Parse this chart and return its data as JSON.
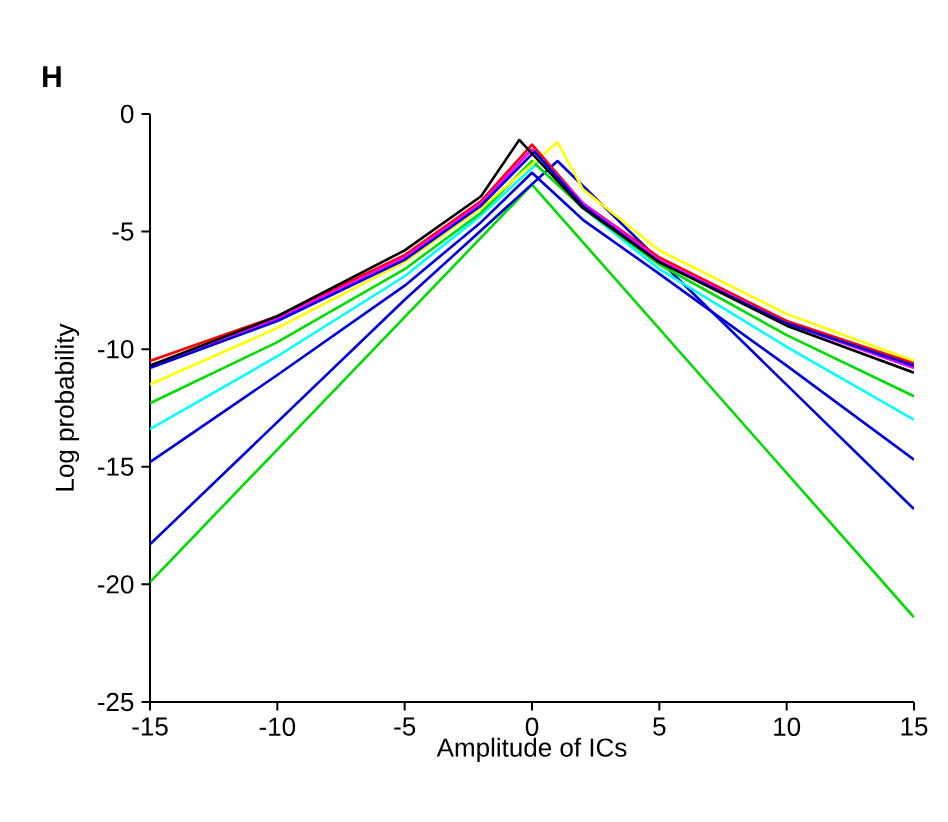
{
  "chart_data": {
    "type": "line",
    "xlabel": "Amplitude of ICs",
    "ylabel": "Log probability",
    "annotations": [
      "H"
    ],
    "xlim": [
      -15,
      15
    ],
    "ylim": [
      -25,
      0
    ],
    "xticks": [
      -15,
      -10,
      -5,
      0,
      5,
      10,
      15
    ],
    "yticks": [
      -25,
      -20,
      -15,
      -10,
      -5,
      0
    ],
    "grid": false,
    "marker": "none",
    "line_style": "solid",
    "series": [
      {
        "color": "#00dd00",
        "x": [
          -15,
          0,
          15
        ],
        "values": [
          -19.9,
          -3,
          -21.4
        ]
      },
      {
        "color": "#0000dd",
        "x": [
          -15,
          -5,
          1,
          15
        ],
        "values": [
          -18.3,
          -7.9,
          -2,
          -16.8
        ]
      },
      {
        "color": "#0000dd",
        "x": [
          -15,
          -10,
          -5,
          -2,
          0,
          2,
          5,
          10,
          15
        ],
        "values": [
          -14.8,
          -11.1,
          -7.3,
          -4.6,
          -2.5,
          -4.5,
          -6.8,
          -10.7,
          -14.7
        ]
      },
      {
        "color": "#00ffff",
        "x": [
          -15,
          -10,
          -5,
          -2,
          0.3,
          2,
          5,
          10,
          15
        ],
        "values": [
          -13.4,
          -10.3,
          -6.9,
          -4.3,
          -2,
          -4,
          -6.6,
          -9.9,
          -13
        ]
      },
      {
        "color": "#00dd00",
        "x": [
          -15,
          -10,
          -5,
          -2,
          0,
          2,
          5,
          10,
          15
        ],
        "values": [
          -12.3,
          -9.7,
          -6.6,
          -4.2,
          -2,
          -4,
          -6.4,
          -9.4,
          -12
        ]
      },
      {
        "color": "#ffff00",
        "x": [
          -15,
          -10,
          -5,
          -2,
          1,
          2,
          5,
          10,
          15
        ],
        "values": [
          -11.5,
          -9.1,
          -6.3,
          -4,
          -1.2,
          -3.2,
          -5.8,
          -8.5,
          -10.5
        ]
      },
      {
        "color": "#ff0000",
        "x": [
          -15,
          -10,
          -5,
          -2,
          0,
          2,
          5,
          10,
          15
        ],
        "values": [
          -10.5,
          -8.6,
          -6,
          -3.7,
          -1.3,
          -3.8,
          -6.1,
          -8.8,
          -10.6
        ]
      },
      {
        "color": "#ff00ff",
        "x": [
          -15,
          -10,
          -5,
          -2,
          0,
          2,
          5,
          10,
          15
        ],
        "values": [
          -10.7,
          -8.7,
          -6.1,
          -3.8,
          -1.5,
          -3.8,
          -6.2,
          -8.9,
          -10.8
        ]
      },
      {
        "color": "#0000dd",
        "x": [
          -15,
          -10,
          -5,
          -2,
          0.1,
          2,
          5,
          10,
          15
        ],
        "values": [
          -10.8,
          -8.8,
          -6.2,
          -3.9,
          -1.6,
          -3.9,
          -6.3,
          -8.9,
          -10.7
        ]
      },
      {
        "color": "#000000",
        "x": [
          -15,
          -10,
          -5,
          -2,
          -0.5,
          2,
          5,
          10,
          15
        ],
        "values": [
          -10.7,
          -8.6,
          -5.8,
          -3.5,
          -1.1,
          -4,
          -6.3,
          -9,
          -11
        ]
      }
    ]
  }
}
